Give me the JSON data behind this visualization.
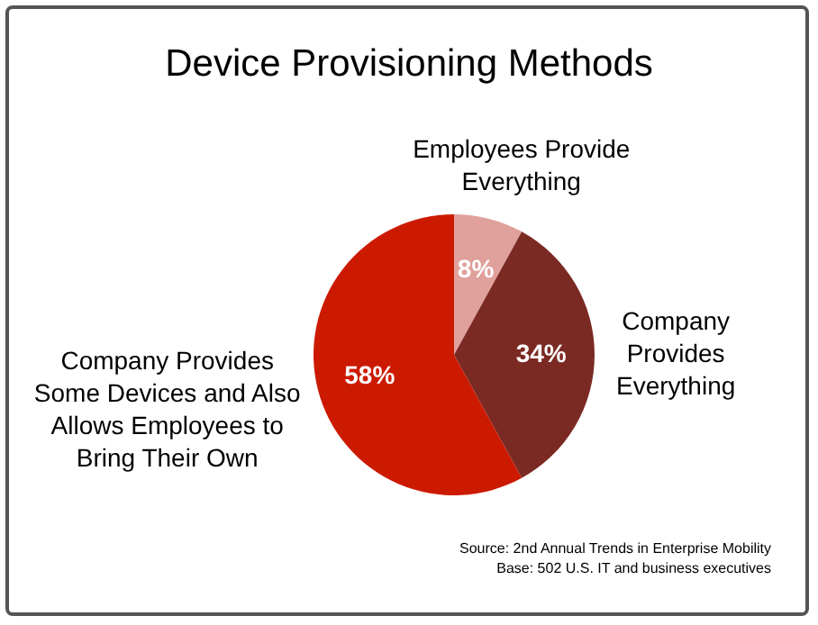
{
  "chart_data": {
    "type": "pie",
    "title": "Device Provisioning Methods",
    "categories": [
      "Employees Provide Everything",
      "Company Provides Everything",
      "Company Provides Some Devices and Also Allows Employees to Bring Their Own"
    ],
    "values": [
      8,
      34,
      58
    ],
    "colors": [
      "#e0a09c",
      "#7b2a23",
      "#cc1a00"
    ],
    "value_labels": [
      "8%",
      "34%",
      "58%"
    ],
    "annotations": [
      "Source: 2nd Annual Trends in Enterprise Mobility",
      "Base: 502 U.S. IT and business executives"
    ]
  }
}
